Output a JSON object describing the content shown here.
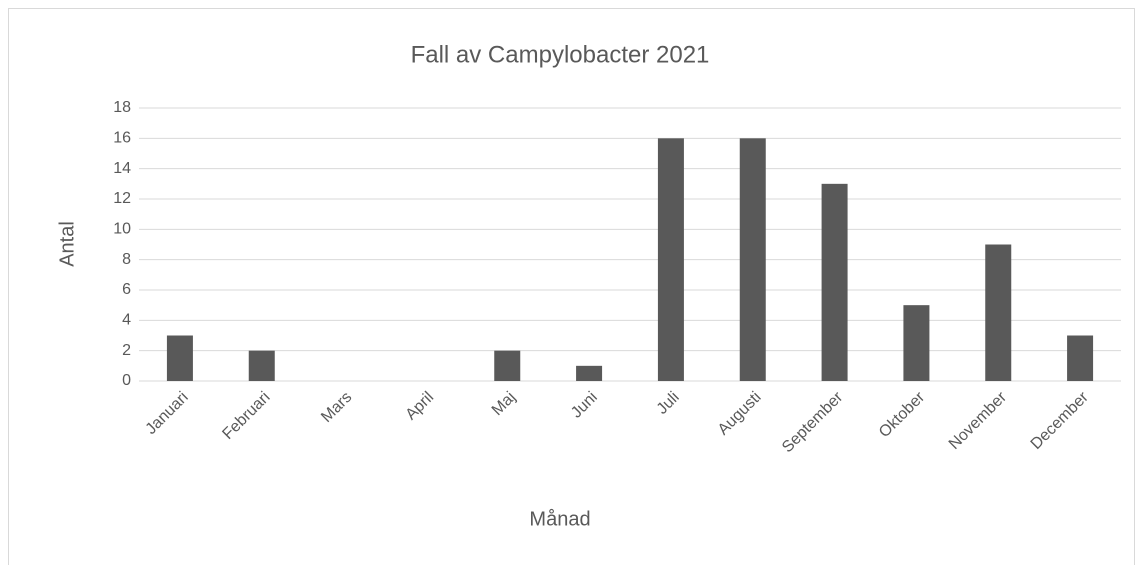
{
  "chart_data": {
    "type": "bar",
    "title": "Fall av Campylobacter 2021",
    "x_label": "Månad",
    "y_label": "Antal",
    "categories": [
      "Januari",
      "Februari",
      "Mars",
      "April",
      "Maj",
      "Juni",
      "Juli",
      "Augusti",
      "September",
      "Oktober",
      "November",
      "December"
    ],
    "values": [
      3,
      2,
      0,
      0,
      2,
      1,
      16,
      16,
      13,
      5,
      9,
      3
    ],
    "color": "#595959",
    "ylim": [
      0,
      18
    ],
    "yticks": [
      0,
      2,
      4,
      6,
      8,
      10,
      12,
      14,
      16,
      18
    ],
    "grid": true
  }
}
